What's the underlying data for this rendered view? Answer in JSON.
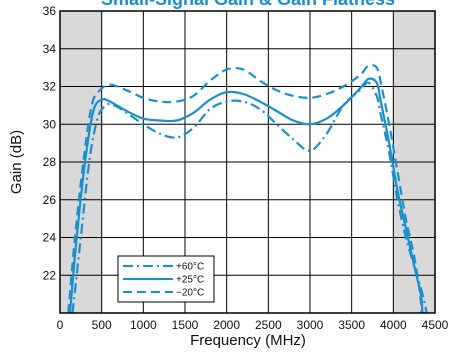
{
  "chart_data": {
    "type": "line",
    "title": "Small-Signal Gain & Gain Flatness",
    "xlabel": "Frequency (MHz)",
    "ylabel": "Gain (dB)",
    "xlim": [
      0,
      4500
    ],
    "ylim": [
      20,
      36
    ],
    "xticks": [
      "0",
      "500",
      "1000",
      "1500",
      "2000",
      "2500",
      "3000",
      "3500",
      "4000",
      "4500"
    ],
    "yticks": [
      "22",
      "24",
      "26",
      "28",
      "30",
      "32",
      "34",
      "36"
    ],
    "grid": true,
    "shaded_x_ranges": [
      [
        0,
        500
      ],
      [
        4000,
        4500
      ]
    ],
    "legend_position": "bottom-left",
    "colors": {
      "series": "#1a8fd0",
      "shade": "#d9d9d9",
      "grid": "#000000",
      "title": "#1a8fd0"
    },
    "series": [
      {
        "name": "+60°C",
        "dash": "dashdot",
        "x": [
          150,
          250,
          350,
          450,
          550,
          650,
          800,
          1000,
          1200,
          1400,
          1600,
          1800,
          2000,
          2200,
          2400,
          2600,
          2800,
          3000,
          3200,
          3400,
          3600,
          3700,
          3800,
          3850,
          3950,
          4050,
          4150,
          4250,
          4350,
          4400
        ],
        "y": [
          20.0,
          24.0,
          28.0,
          30.3,
          31.0,
          31.0,
          30.6,
          30.0,
          29.5,
          29.3,
          29.8,
          30.8,
          31.2,
          31.2,
          30.8,
          30.0,
          29.2,
          28.6,
          29.5,
          31.0,
          31.8,
          32.2,
          31.5,
          30.5,
          28.5,
          26.0,
          24.0,
          22.5,
          21.0,
          20.0
        ]
      },
      {
        "name": "+25°C",
        "dash": "solid",
        "x": [
          120,
          200,
          300,
          400,
          500,
          600,
          800,
          1000,
          1200,
          1400,
          1600,
          1800,
          2000,
          2200,
          2400,
          2600,
          2800,
          3000,
          3200,
          3400,
          3600,
          3700,
          3800,
          3850,
          3950,
          4050,
          4150,
          4250,
          4330,
          4350
        ],
        "y": [
          20.0,
          24.0,
          28.0,
          30.7,
          31.3,
          31.2,
          30.7,
          30.3,
          30.2,
          30.2,
          30.6,
          31.3,
          31.7,
          31.6,
          31.2,
          30.7,
          30.2,
          30.0,
          30.3,
          31.0,
          31.9,
          32.4,
          32.2,
          31.2,
          29.0,
          26.5,
          24.5,
          22.5,
          21.0,
          20.0
        ]
      },
      {
        "name": "−20°C",
        "dash": "dashed",
        "x": [
          100,
          180,
          280,
          380,
          480,
          600,
          800,
          1000,
          1200,
          1400,
          1600,
          1800,
          2000,
          2200,
          2400,
          2600,
          2800,
          3000,
          3200,
          3400,
          3600,
          3700,
          3800,
          3850,
          3950,
          4050,
          4150,
          4250,
          4320,
          4340
        ],
        "y": [
          20.0,
          24.0,
          28.0,
          31.0,
          31.8,
          32.1,
          31.8,
          31.4,
          31.2,
          31.2,
          31.5,
          32.3,
          32.9,
          32.9,
          32.3,
          31.8,
          31.5,
          31.4,
          31.6,
          32.0,
          32.6,
          33.1,
          33.0,
          32.2,
          30.0,
          27.5,
          25.0,
          23.0,
          21.0,
          20.0
        ]
      }
    ]
  }
}
